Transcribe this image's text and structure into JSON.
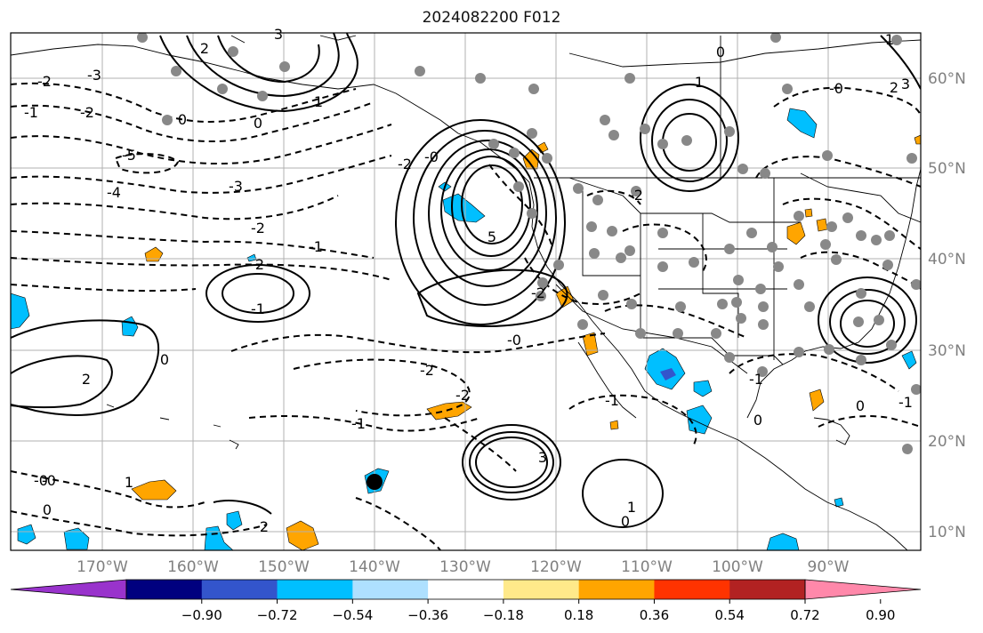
{
  "title": "2024082200 F012",
  "map": {
    "lon_labels": [
      "170°W",
      "160°W",
      "150°W",
      "140°W",
      "130°W",
      "120°W",
      "110°W",
      "100°W",
      "90°W"
    ],
    "lat_labels": [
      "60°N",
      "50°N",
      "40°N",
      "30°N",
      "20°N",
      "10°N"
    ],
    "contour_labels": [
      {
        "text": "3"
      },
      {
        "text": "2"
      },
      {
        "text": "1"
      },
      {
        "text": "0"
      },
      {
        "text": "-3"
      },
      {
        "text": "-2"
      },
      {
        "text": "-1"
      },
      {
        "text": "0"
      },
      {
        "text": "-2"
      },
      {
        "text": "-5"
      },
      {
        "text": "-4"
      },
      {
        "text": "-3"
      },
      {
        "text": "-2"
      },
      {
        "text": "-1"
      },
      {
        "text": "2"
      },
      {
        "text": "-1"
      },
      {
        "text": "2"
      },
      {
        "text": "0"
      },
      {
        "text": "-2"
      },
      {
        "text": "-1"
      },
      {
        "text": "5"
      },
      {
        "text": "-2"
      },
      {
        "text": "-0"
      },
      {
        "text": "3"
      },
      {
        "text": "-2"
      },
      {
        "text": "-0"
      },
      {
        "text": "0"
      },
      {
        "text": "-2"
      },
      {
        "text": "-1"
      },
      {
        "text": "-0"
      },
      {
        "text": "1"
      },
      {
        "text": "1"
      },
      {
        "text": "0"
      },
      {
        "text": "-1"
      },
      {
        "text": "-0"
      },
      {
        "text": "1"
      },
      {
        "text": "3"
      },
      {
        "text": "-2"
      },
      {
        "text": "0"
      },
      {
        "text": "2"
      },
      {
        "text": "0"
      },
      {
        "text": "1"
      },
      {
        "text": "-0"
      },
      {
        "text": "2"
      },
      {
        "text": "0"
      },
      {
        "text": "-1"
      }
    ]
  },
  "colorbar": {
    "colors": [
      "#9933cc",
      "#00007f",
      "#3355cc",
      "#00bfff",
      "#aee0ff",
      "#ffffff",
      "#ffe98a",
      "#ffa500",
      "#ff3300",
      "#b22222",
      "#ff88aa"
    ],
    "ticks": [
      "−0.90",
      "−0.72",
      "−0.54",
      "−0.36",
      "−0.18",
      "0.18",
      "0.36",
      "0.54",
      "0.72",
      "0.90"
    ]
  }
}
